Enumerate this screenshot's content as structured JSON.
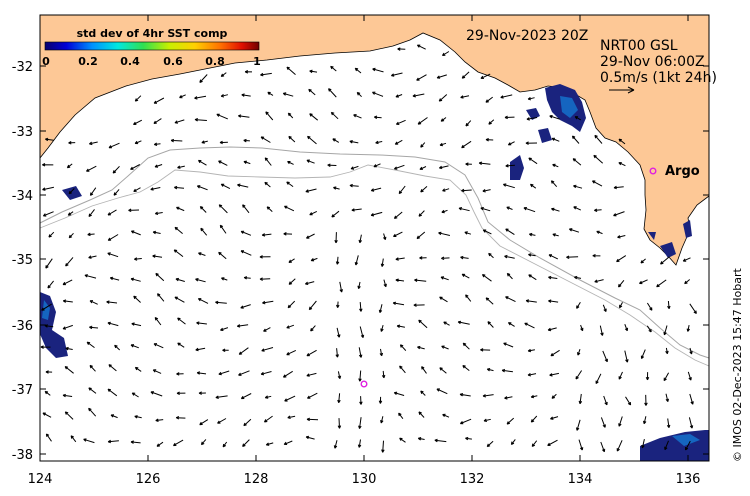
{
  "map": {
    "date_label": "29-Nov-2023 20Z",
    "product_label": "NRT00 GSL",
    "vector_time_label": "29-Nov 06:00Z",
    "scale_label": "0.5m/s (1kt 24h)",
    "credit": "© IMOS 02-Dec-2023 15:47 Hobart",
    "argo_label": "Argo",
    "x_ticks": [
      "124",
      "126",
      "128",
      "130",
      "132",
      "134",
      "136"
    ],
    "y_ticks": [
      "-32",
      "-33",
      "-34",
      "-35",
      "-36",
      "-37",
      "-38"
    ],
    "colors": {
      "land": "#fdc896",
      "argo": "#e020e0",
      "coastline": "#000000",
      "isobath": "#a0a0a0"
    }
  },
  "legend": {
    "title": "std dev of 4hr SST comp",
    "ticks": [
      "0",
      "0.2",
      "0.4",
      "0.6",
      "0.8",
      "1"
    ]
  },
  "chart_data": {
    "type": "map",
    "lon_range": [
      124,
      136.5
    ],
    "lat_range": [
      -38.1,
      -31.3
    ],
    "argo_floats": [
      {
        "lon": 135.5,
        "lat": -33.6,
        "labeled": true
      },
      {
        "lon": 130.05,
        "lat": -36.9,
        "labeled": false
      }
    ]
  }
}
